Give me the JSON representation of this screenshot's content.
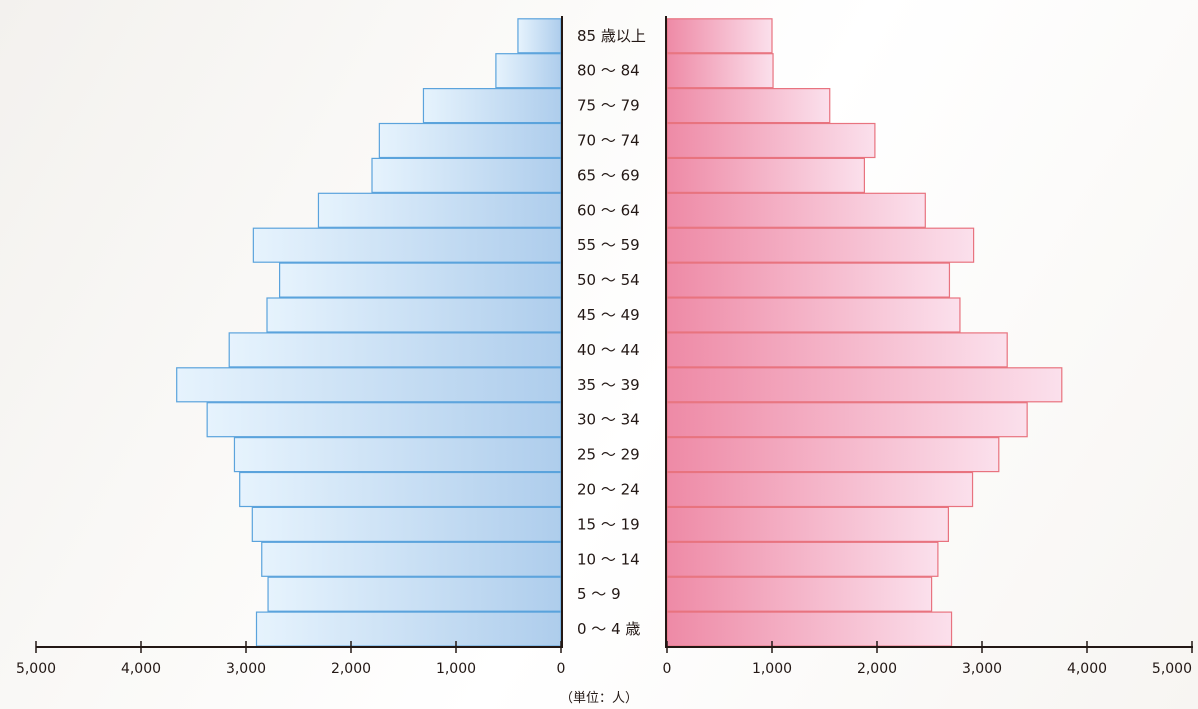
{
  "chart_data": {
    "type": "bar",
    "title": "",
    "unit_label": "（単位：人）",
    "categories": [
      "0 〜 4 歳",
      "5 〜 9",
      "10 〜 14",
      "15 〜 19",
      "20 〜 24",
      "25 〜 29",
      "30 〜 34",
      "35 〜 39",
      "40 〜 44",
      "45 〜 49",
      "50 〜 54",
      "55 〜 59",
      "60 〜 64",
      "65 〜 69",
      "70 〜 74",
      "75 〜 79",
      "80 〜 84",
      "85 歳以上"
    ],
    "series": [
      {
        "values": [
          2900,
          2790,
          2850,
          2940,
          3060,
          3110,
          3370,
          3660,
          3160,
          2800,
          2680,
          2930,
          2310,
          1800,
          1730,
          1310,
          620,
          410
        ],
        "color": "#5ba3dc"
      },
      {
        "values": [
          2710,
          2520,
          2580,
          2680,
          2910,
          3160,
          3430,
          3760,
          3240,
          2790,
          2690,
          2920,
          2460,
          1880,
          1980,
          1550,
          1010,
          1000
        ],
        "color": "#e8737f"
      }
    ],
    "left_ticks": [
      "5,000",
      "4,000",
      "3,000",
      "2,000",
      "1,000",
      "0"
    ],
    "right_ticks": [
      "0",
      "1,000",
      "2,000",
      "3,000",
      "4,000",
      "5,000"
    ],
    "xlim": [
      0,
      5000
    ]
  }
}
